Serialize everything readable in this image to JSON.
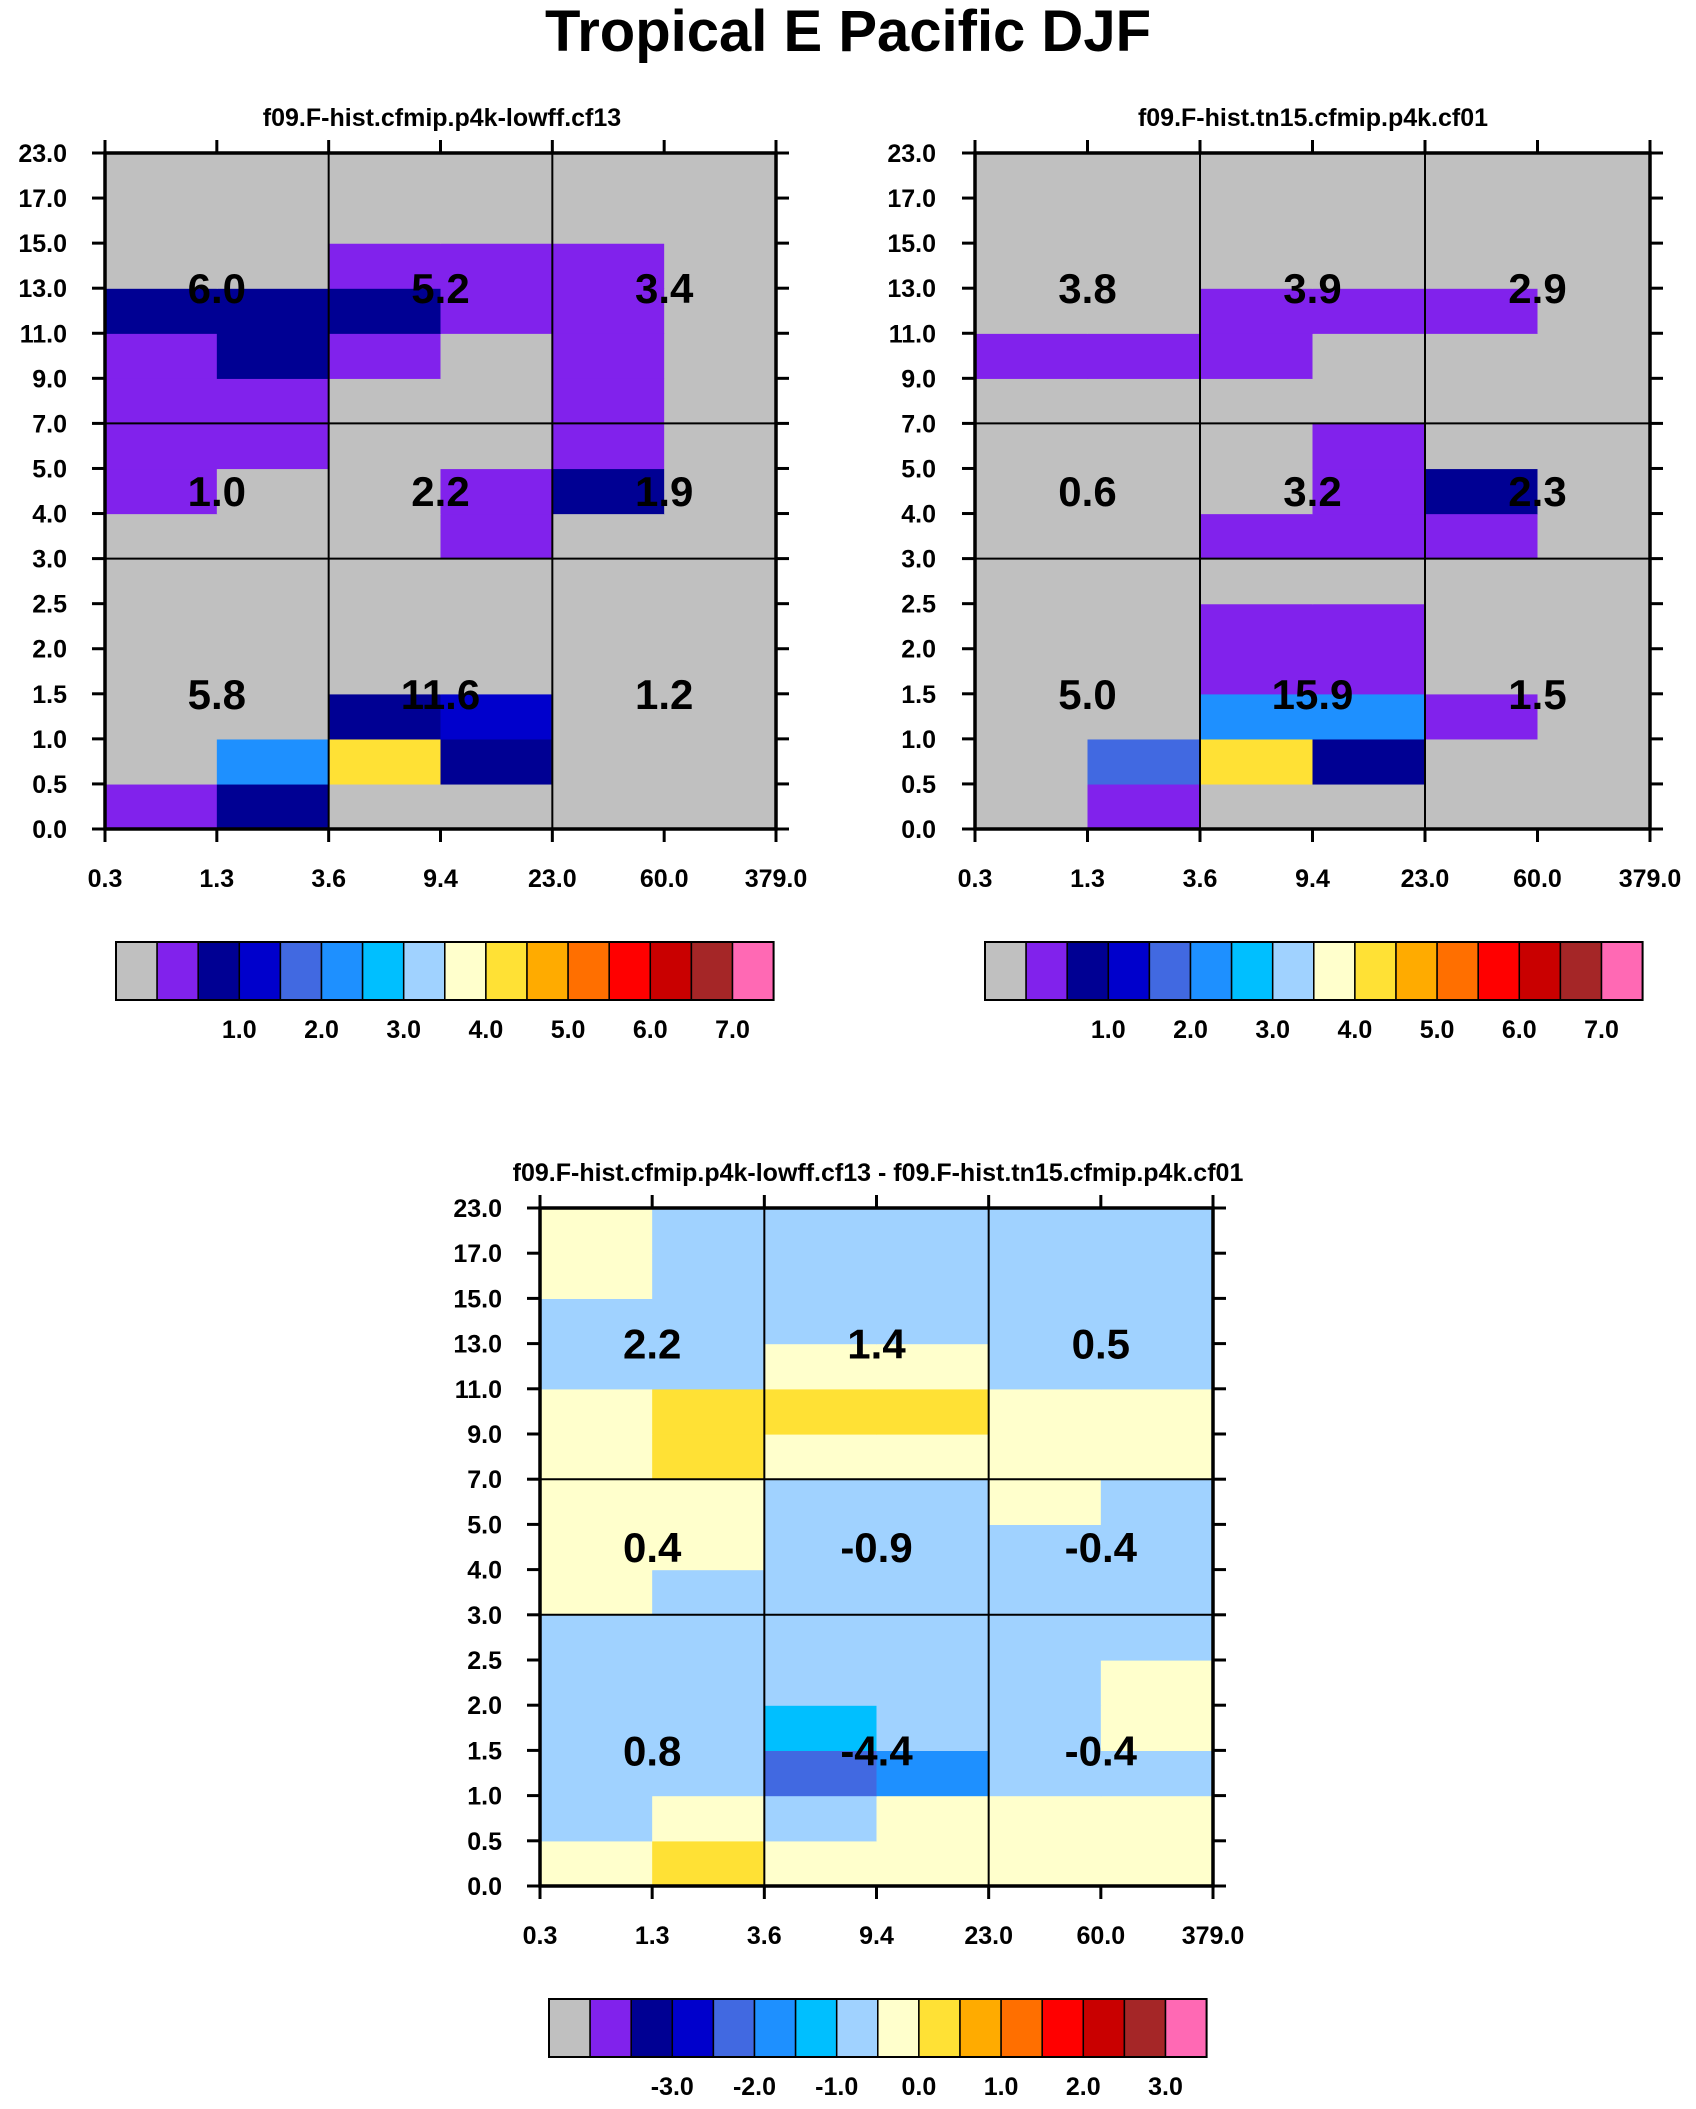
{
  "title": "Tropical E Pacific DJF",
  "palette": [
    "#c0c0c0",
    "#8122ec",
    "#000093",
    "#0000cc",
    "#4169e1",
    "#1e90ff",
    "#00bfff",
    "#a0d2ff",
    "#ffffcc",
    "#ffe135",
    "#ffab00",
    "#ff6f00",
    "#ff0000",
    "#c90000",
    "#a52627",
    "#ff69b4"
  ],
  "chart_data": [
    {
      "type": "heatmap",
      "title": "f09.F-hist.cfmip.p4k-lowff.cf13",
      "xlabel": "",
      "ylabel": "",
      "x_ticks": [
        "0.3",
        "1.3",
        "3.6",
        "9.4",
        "23.0",
        "60.0",
        "379.0"
      ],
      "y_ticks": [
        "0.0",
        "0.5",
        "1.0",
        "1.5",
        "2.0",
        "2.5",
        "3.0",
        "4.0",
        "5.0",
        "7.0",
        "9.0",
        "11.0",
        "13.0",
        "15.0",
        "17.0",
        "23.0"
      ],
      "colorbar_labels": [
        "1.0",
        "2.0",
        "3.0",
        "4.0",
        "5.0",
        "6.0",
        "7.0"
      ],
      "group_values": [
        [
          "5.8",
          "11.6",
          "1.2"
        ],
        [
          "1.0",
          "2.2",
          "1.9"
        ],
        [
          "6.0",
          "5.2",
          "3.4"
        ]
      ],
      "cell_colors": [
        [
          1,
          2,
          0,
          0,
          0,
          0
        ],
        [
          0,
          5,
          9,
          2,
          0,
          0
        ],
        [
          0,
          0,
          2,
          3,
          0,
          0
        ],
        [
          0,
          0,
          0,
          0,
          0,
          0
        ],
        [
          0,
          0,
          0,
          0,
          0,
          0
        ],
        [
          0,
          0,
          0,
          0,
          0,
          0
        ],
        [
          0,
          0,
          0,
          1,
          0,
          0
        ],
        [
          1,
          0,
          0,
          1,
          2,
          0
        ],
        [
          1,
          1,
          0,
          0,
          1,
          0
        ],
        [
          1,
          1,
          0,
          0,
          1,
          0
        ],
        [
          1,
          2,
          1,
          0,
          1,
          0
        ],
        [
          2,
          2,
          2,
          1,
          1,
          0
        ],
        [
          0,
          0,
          1,
          1,
          1,
          0
        ],
        [
          0,
          0,
          0,
          0,
          0,
          0
        ],
        [
          0,
          0,
          0,
          0,
          0,
          0
        ]
      ]
    },
    {
      "type": "heatmap",
      "title": "f09.F-hist.tn15.cfmip.p4k.cf01",
      "xlabel": "",
      "ylabel": "",
      "x_ticks": [
        "0.3",
        "1.3",
        "3.6",
        "9.4",
        "23.0",
        "60.0",
        "379.0"
      ],
      "y_ticks": [
        "0.0",
        "0.5",
        "1.0",
        "1.5",
        "2.0",
        "2.5",
        "3.0",
        "4.0",
        "5.0",
        "7.0",
        "9.0",
        "11.0",
        "13.0",
        "15.0",
        "17.0",
        "23.0"
      ],
      "colorbar_labels": [
        "1.0",
        "2.0",
        "3.0",
        "4.0",
        "5.0",
        "6.0",
        "7.0"
      ],
      "group_values": [
        [
          "5.0",
          "15.9",
          "1.5"
        ],
        [
          "0.6",
          "3.2",
          "2.3"
        ],
        [
          "3.8",
          "3.9",
          "2.9"
        ]
      ],
      "cell_colors": [
        [
          0,
          1,
          0,
          0,
          0,
          0
        ],
        [
          0,
          4,
          9,
          2,
          0,
          0
        ],
        [
          0,
          0,
          5,
          5,
          1,
          0
        ],
        [
          0,
          0,
          1,
          1,
          0,
          0
        ],
        [
          0,
          0,
          1,
          1,
          0,
          0
        ],
        [
          0,
          0,
          0,
          0,
          0,
          0
        ],
        [
          0,
          0,
          1,
          1,
          1,
          0
        ],
        [
          0,
          0,
          0,
          1,
          2,
          0
        ],
        [
          0,
          0,
          0,
          1,
          0,
          0
        ],
        [
          0,
          0,
          0,
          0,
          0,
          0
        ],
        [
          1,
          1,
          1,
          0,
          0,
          0
        ],
        [
          0,
          0,
          1,
          1,
          1,
          0
        ],
        [
          0,
          0,
          0,
          0,
          0,
          0
        ],
        [
          0,
          0,
          0,
          0,
          0,
          0
        ],
        [
          0,
          0,
          0,
          0,
          0,
          0
        ]
      ]
    },
    {
      "type": "heatmap",
      "title": "f09.F-hist.cfmip.p4k-lowff.cf13 - f09.F-hist.tn15.cfmip.p4k.cf01",
      "xlabel": "",
      "ylabel": "",
      "x_ticks": [
        "0.3",
        "1.3",
        "3.6",
        "9.4",
        "23.0",
        "60.0",
        "379.0"
      ],
      "y_ticks": [
        "0.0",
        "0.5",
        "1.0",
        "1.5",
        "2.0",
        "2.5",
        "3.0",
        "4.0",
        "5.0",
        "7.0",
        "9.0",
        "11.0",
        "13.0",
        "15.0",
        "17.0",
        "23.0"
      ],
      "colorbar_labels": [
        "-3.0",
        "-2.0",
        "-1.0",
        "0.0",
        "1.0",
        "2.0",
        "3.0"
      ],
      "group_values": [
        [
          "0.8",
          "-4.4",
          "-0.4"
        ],
        [
          "0.4",
          "-0.9",
          "-0.4"
        ],
        [
          "2.2",
          "1.4",
          "0.5"
        ]
      ],
      "cell_colors": [
        [
          8,
          9,
          8,
          8,
          8,
          8
        ],
        [
          7,
          8,
          7,
          8,
          8,
          8
        ],
        [
          7,
          7,
          4,
          5,
          7,
          7
        ],
        [
          7,
          7,
          6,
          7,
          7,
          8
        ],
        [
          7,
          7,
          7,
          7,
          7,
          8
        ],
        [
          7,
          7,
          7,
          7,
          7,
          7
        ],
        [
          8,
          7,
          7,
          7,
          7,
          7
        ],
        [
          8,
          8,
          7,
          7,
          7,
          7
        ],
        [
          8,
          8,
          7,
          7,
          8,
          7
        ],
        [
          8,
          9,
          8,
          8,
          8,
          8
        ],
        [
          8,
          9,
          9,
          9,
          8,
          8
        ],
        [
          7,
          7,
          8,
          8,
          7,
          7
        ],
        [
          7,
          7,
          7,
          7,
          7,
          7
        ],
        [
          8,
          7,
          7,
          7,
          7,
          7
        ],
        [
          8,
          7,
          7,
          7,
          7,
          7
        ]
      ]
    }
  ]
}
